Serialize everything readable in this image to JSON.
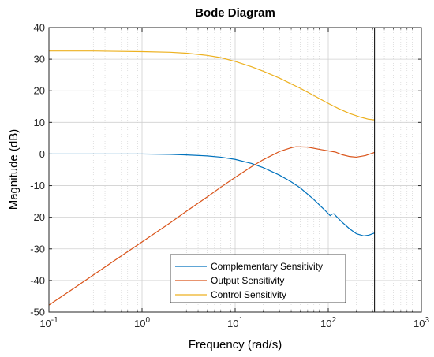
{
  "chart_data": {
    "type": "line",
    "title": "Bode Diagram",
    "xlabel": "Frequency  (rad/s)",
    "ylabel": "Magnitude (dB)",
    "xscale": "log",
    "xlim": [
      0.1,
      1000
    ],
    "ylim": [
      -50,
      40
    ],
    "x_ticks": [
      0.1,
      1,
      10,
      100,
      1000
    ],
    "x_tick_labels": [
      {
        "base": "10",
        "exp": "-1"
      },
      {
        "base": "10",
        "exp": "0"
      },
      {
        "base": "10",
        "exp": "1"
      },
      {
        "base": "10",
        "exp": "2"
      },
      {
        "base": "10",
        "exp": "3"
      }
    ],
    "y_ticks": [
      -50,
      -40,
      -30,
      -20,
      -10,
      0,
      10,
      20,
      30,
      40
    ],
    "y_tick_labels": [
      "-50",
      "-40",
      "-30",
      "-20",
      "-10",
      "0",
      "10",
      "20",
      "30",
      "40"
    ],
    "grid": true,
    "legend_position": "bottom-center",
    "vertical_marker_x": 314,
    "series": [
      {
        "name": "Complementary Sensitivity",
        "color": "#0072BD",
        "points": [
          [
            0.1,
            0
          ],
          [
            0.3,
            0
          ],
          [
            1,
            0
          ],
          [
            2,
            -0.1
          ],
          [
            3,
            -0.3
          ],
          [
            5,
            -0.6
          ],
          [
            7,
            -1.0
          ],
          [
            10,
            -1.7
          ],
          [
            15,
            -3.0
          ],
          [
            20,
            -4.3
          ],
          [
            30,
            -6.7
          ],
          [
            40,
            -8.8
          ],
          [
            50,
            -10.7
          ],
          [
            70,
            -14.4
          ],
          [
            90,
            -17.5
          ],
          [
            105,
            -19.5
          ],
          [
            110,
            -19.0
          ],
          [
            115,
            -18.9
          ],
          [
            120,
            -19.5
          ],
          [
            140,
            -21.5
          ],
          [
            170,
            -23.7
          ],
          [
            200,
            -25.2
          ],
          [
            240,
            -25.9
          ],
          [
            270,
            -25.7
          ],
          [
            314,
            -25
          ]
        ]
      },
      {
        "name": "Output Sensitivity",
        "color": "#D95319",
        "points": [
          [
            0.1,
            -47.8
          ],
          [
            0.2,
            -41.8
          ],
          [
            0.5,
            -33.8
          ],
          [
            1,
            -27.8
          ],
          [
            2,
            -21.8
          ],
          [
            3,
            -18.1
          ],
          [
            5,
            -13.6
          ],
          [
            7,
            -10.5
          ],
          [
            10,
            -7.4
          ],
          [
            15,
            -4.0
          ],
          [
            20,
            -1.8
          ],
          [
            30,
            0.8
          ],
          [
            40,
            2.0
          ],
          [
            45,
            2.3
          ],
          [
            60,
            2.2
          ],
          [
            80,
            1.5
          ],
          [
            100,
            1.0
          ],
          [
            110,
            0.8
          ],
          [
            120,
            0.6
          ],
          [
            140,
            -0.2
          ],
          [
            170,
            -0.8
          ],
          [
            200,
            -1.0
          ],
          [
            250,
            -0.5
          ],
          [
            314,
            0.5
          ]
        ]
      },
      {
        "name": "Control Sensitivity",
        "color": "#EDB120",
        "points": [
          [
            0.1,
            32.6
          ],
          [
            0.3,
            32.6
          ],
          [
            0.5,
            32.5
          ],
          [
            1,
            32.4
          ],
          [
            2,
            32.2
          ],
          [
            3,
            31.9
          ],
          [
            5,
            31.2
          ],
          [
            7,
            30.5
          ],
          [
            10,
            29.3
          ],
          [
            15,
            27.6
          ],
          [
            20,
            26.2
          ],
          [
            30,
            24.0
          ],
          [
            40,
            22.2
          ],
          [
            50,
            20.8
          ],
          [
            70,
            18.5
          ],
          [
            100,
            16.0
          ],
          [
            130,
            14.3
          ],
          [
            170,
            12.8
          ],
          [
            220,
            11.7
          ],
          [
            270,
            11.0
          ],
          [
            314,
            10.8
          ]
        ]
      }
    ]
  }
}
